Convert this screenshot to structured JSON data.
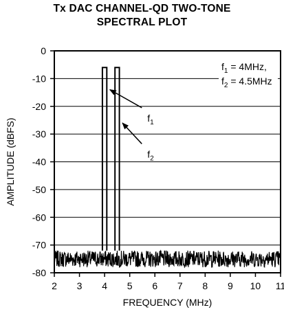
{
  "chart_data": {
    "type": "line",
    "title_line1": "Tx DAC CHANNEL-QD TWO-TONE",
    "title_line2": "SPECTRAL PLOT",
    "xlabel": "FREQUENCY (MHz)",
    "ylabel": "AMPLITUDE (dBFS)",
    "xlim": [
      2,
      11
    ],
    "ylim": [
      -80,
      0
    ],
    "x_ticks": [
      2,
      3,
      4,
      5,
      6,
      7,
      8,
      9,
      10,
      11
    ],
    "x_tick_labels": [
      "2",
      "3",
      "4",
      "5",
      "6",
      "7",
      "8",
      "9",
      "10",
      "11"
    ],
    "y_ticks": [
      0,
      -10,
      -20,
      -30,
      -40,
      -50,
      -60,
      -70,
      -80
    ],
    "y_tick_labels": [
      "0",
      "-10",
      "-20",
      "-30",
      "-40",
      "-50",
      "-60",
      "-70",
      "-80"
    ],
    "grid": true,
    "noise_floor_range_dbfs": [
      -78,
      -72
    ],
    "tones": [
      {
        "name": "f1",
        "label": "f",
        "label_sub": "1",
        "x": 4.0,
        "peak": -6
      },
      {
        "name": "f2",
        "label": "f",
        "label_sub": "2",
        "x": 4.5,
        "peak": -6
      }
    ],
    "legend": {
      "line1_main": "f",
      "line1_sub": "1",
      "line1_rest": " = 4MHz,",
      "line2_main": "f",
      "line2_sub": "2",
      "line2_rest": " = 4.5MHz"
    },
    "annotations": [
      {
        "target": "f1",
        "arrow_tip": [
          4.1,
          -14
        ],
        "text_at": [
          5.7,
          -22
        ]
      },
      {
        "target": "f2",
        "arrow_tip": [
          4.6,
          -26
        ],
        "text_at": [
          5.7,
          -35
        ]
      }
    ]
  }
}
